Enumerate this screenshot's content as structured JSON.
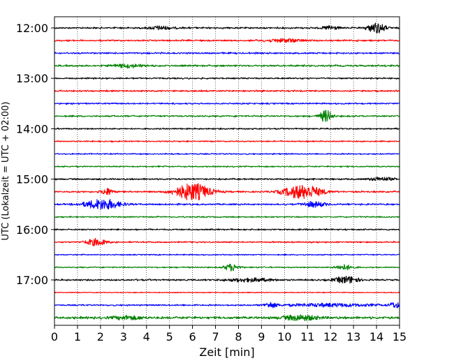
{
  "chart_data": {
    "type": "line",
    "title": "",
    "xlabel": "Zeit  [min]",
    "ylabel": "UTC (Lokalzeit = UTC + 02:00)",
    "xlim": [
      0,
      15
    ],
    "x_ticks": [
      0,
      1,
      2,
      3,
      4,
      5,
      6,
      7,
      8,
      9,
      10,
      11,
      12,
      13,
      14,
      15
    ],
    "x_grid": "dotted vertical lines at every minute",
    "y_ticks": [
      {
        "label": "12:00",
        "trace_index": 0
      },
      {
        "label": "13:00",
        "trace_index": 4
      },
      {
        "label": "14:00",
        "trace_index": 8
      },
      {
        "label": "15:00",
        "trace_index": 12
      },
      {
        "label": "16:00",
        "trace_index": 16
      },
      {
        "label": "17:00",
        "trace_index": 20
      }
    ],
    "trace_interval_minutes": 15,
    "color_cycle": [
      "#000000",
      "#ff0000",
      "#0000ff",
      "#008000"
    ],
    "traces": [
      {
        "start": "12:00",
        "color": "#000000",
        "noise": 0.9,
        "events": [
          {
            "t": 4.6,
            "amp": 2,
            "dur": 0.8
          },
          {
            "t": 12.0,
            "amp": 2.5,
            "dur": 0.5
          },
          {
            "t": 14.0,
            "amp": 6,
            "dur": 0.6
          }
        ]
      },
      {
        "start": "12:15",
        "color": "#ff0000",
        "noise": 0.9,
        "events": [
          {
            "t": 10.0,
            "amp": 2,
            "dur": 1.2
          }
        ]
      },
      {
        "start": "12:30",
        "color": "#0000ff",
        "noise": 0.9,
        "events": []
      },
      {
        "start": "12:45",
        "color": "#008000",
        "noise": 1.0,
        "events": [
          {
            "t": 3.2,
            "amp": 1.8,
            "dur": 1.0
          }
        ]
      },
      {
        "start": "13:00",
        "color": "#000000",
        "noise": 0.8,
        "events": []
      },
      {
        "start": "13:15",
        "color": "#ff0000",
        "noise": 0.9,
        "events": []
      },
      {
        "start": "13:30",
        "color": "#0000ff",
        "noise": 0.8,
        "events": []
      },
      {
        "start": "13:45",
        "color": "#008000",
        "noise": 0.9,
        "events": [
          {
            "t": 11.8,
            "amp": 7,
            "dur": 0.4
          }
        ]
      },
      {
        "start": "14:00",
        "color": "#000000",
        "noise": 0.8,
        "events": []
      },
      {
        "start": "14:15",
        "color": "#ff0000",
        "noise": 0.7,
        "events": []
      },
      {
        "start": "14:30",
        "color": "#0000ff",
        "noise": 0.7,
        "events": []
      },
      {
        "start": "14:45",
        "color": "#008000",
        "noise": 0.7,
        "events": []
      },
      {
        "start": "15:00",
        "color": "#000000",
        "noise": 0.9,
        "events": [
          {
            "t": 14.2,
            "amp": 2,
            "dur": 0.8
          }
        ]
      },
      {
        "start": "15:15",
        "color": "#ff0000",
        "noise": 0.9,
        "events": [
          {
            "t": 2.3,
            "amp": 4,
            "dur": 0.4
          },
          {
            "t": 6.0,
            "amp": 10,
            "dur": 1.2
          },
          {
            "t": 10.8,
            "amp": 8,
            "dur": 1.3
          }
        ]
      },
      {
        "start": "15:30",
        "color": "#0000ff",
        "noise": 0.9,
        "events": [
          {
            "t": 2.1,
            "amp": 6,
            "dur": 1.2
          },
          {
            "t": 11.3,
            "amp": 3,
            "dur": 0.8
          }
        ]
      },
      {
        "start": "15:45",
        "color": "#008000",
        "noise": 0.7,
        "events": []
      },
      {
        "start": "16:00",
        "color": "#000000",
        "noise": 0.8,
        "events": []
      },
      {
        "start": "16:15",
        "color": "#ff0000",
        "noise": 0.8,
        "events": [
          {
            "t": 1.8,
            "amp": 4,
            "dur": 0.7
          }
        ]
      },
      {
        "start": "16:30",
        "color": "#0000ff",
        "noise": 0.6,
        "events": []
      },
      {
        "start": "16:45",
        "color": "#008000",
        "noise": 0.7,
        "events": [
          {
            "t": 7.7,
            "amp": 4,
            "dur": 0.5
          },
          {
            "t": 12.6,
            "amp": 3,
            "dur": 0.6
          }
        ]
      },
      {
        "start": "17:00",
        "color": "#000000",
        "noise": 0.9,
        "events": [
          {
            "t": 8.5,
            "amp": 2,
            "dur": 1.5
          },
          {
            "t": 12.7,
            "amp": 4,
            "dur": 0.8
          }
        ]
      },
      {
        "start": "17:15",
        "color": "#ff0000",
        "noise": 0.5,
        "events": []
      },
      {
        "start": "17:30",
        "color": "#0000ff",
        "noise": 0.8,
        "events": [
          {
            "t": 9.4,
            "amp": 3,
            "dur": 0.4
          },
          {
            "t": 12.0,
            "amp": 1.8,
            "dur": 3.0
          },
          {
            "t": 14.8,
            "amp": 3,
            "dur": 0.4
          }
        ]
      },
      {
        "start": "17:45",
        "color": "#008000",
        "noise": 1.3,
        "events": [
          {
            "t": 3.2,
            "amp": 2,
            "dur": 1.0
          },
          {
            "t": 10.7,
            "amp": 3,
            "dur": 1.2
          }
        ]
      }
    ]
  }
}
